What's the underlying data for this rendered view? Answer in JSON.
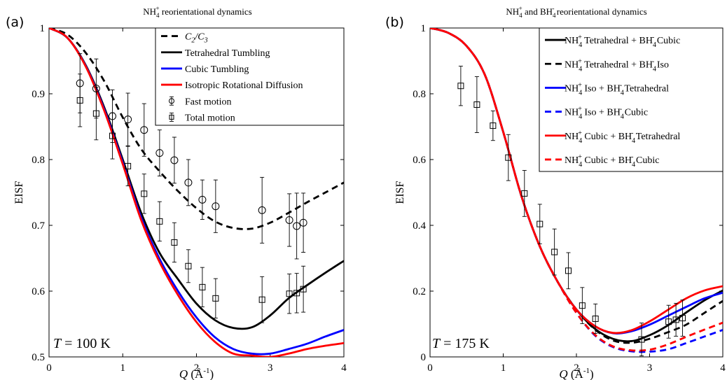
{
  "figure": {
    "panels": [
      {
        "letter": "(a)",
        "title_main": "NH",
        "title_sub": "4",
        "title_sup": "+",
        "title_rest": " reorientational dynamics",
        "temperature_var": "T",
        "temperature_rest": " = 100 K"
      },
      {
        "letter": "(b)",
        "title_main": "NH",
        "title_sub": "4",
        "title_sup": "+",
        "title_rest": " and BH",
        "title_sub2": "4",
        "title_sup2": "-",
        "title_rest2": " reorientational dynamics",
        "temperature_var": "T",
        "temperature_rest": " = 175 K"
      }
    ]
  },
  "chart_data": [
    {
      "type": "line",
      "panel": "(a)",
      "title": "NH4+ reorientational dynamics",
      "xlabel": "Q (Å-1)",
      "ylabel": "EISF",
      "xlim": [
        0,
        4
      ],
      "ylim": [
        0.5,
        1
      ],
      "xticks": [
        "0",
        "1",
        "2",
        "3",
        "4"
      ],
      "yticks": [
        "0.5",
        "0.6",
        "0.7",
        "0.8",
        "0.9",
        "1"
      ],
      "legend_position": "top-right",
      "series": [
        {
          "name": "C2/C3",
          "color": "#000000",
          "dash": true,
          "x": [
            0,
            0.25,
            0.5,
            0.75,
            1.0,
            1.25,
            1.5,
            1.75,
            2.0,
            2.25,
            2.5,
            2.75,
            3.0,
            3.25,
            3.5,
            3.75,
            4.0
          ],
          "y": [
            1.0,
            0.99,
            0.962,
            0.919,
            0.864,
            0.816,
            0.782,
            0.752,
            0.726,
            0.706,
            0.696,
            0.695,
            0.704,
            0.719,
            0.735,
            0.75,
            0.765
          ]
        },
        {
          "name": "Tetrahedral Tumbling",
          "color": "#000000",
          "dash": false,
          "x": [
            0,
            0.25,
            0.5,
            0.75,
            1.0,
            1.25,
            1.5,
            1.75,
            2.0,
            2.25,
            2.5,
            2.75,
            3.0,
            3.25,
            3.5,
            3.75,
            4.0
          ],
          "y": [
            1.0,
            0.985,
            0.943,
            0.879,
            0.8,
            0.719,
            0.658,
            0.618,
            0.581,
            0.556,
            0.544,
            0.545,
            0.563,
            0.589,
            0.609,
            0.628,
            0.646
          ]
        },
        {
          "name": "Cubic Tumbling",
          "color": "#0000ff",
          "dash": false,
          "x": [
            0,
            0.25,
            0.5,
            0.75,
            1.0,
            1.25,
            1.5,
            1.75,
            2.0,
            2.25,
            2.5,
            2.75,
            3.0,
            3.25,
            3.5,
            3.75,
            4.0
          ],
          "y": [
            1.0,
            0.985,
            0.942,
            0.876,
            0.796,
            0.712,
            0.649,
            0.6,
            0.56,
            0.53,
            0.512,
            0.505,
            0.505,
            0.512,
            0.52,
            0.531,
            0.541
          ]
        },
        {
          "name": "Isotropic Rotational Diffusion",
          "color": "#ff0000",
          "dash": false,
          "x": [
            0,
            0.25,
            0.5,
            0.75,
            1.0,
            1.25,
            1.5,
            1.75,
            2.0,
            2.25,
            2.5,
            2.75,
            3.0,
            3.25,
            3.5,
            3.75,
            4.0
          ],
          "y": [
            1.0,
            0.985,
            0.941,
            0.874,
            0.793,
            0.708,
            0.644,
            0.594,
            0.553,
            0.523,
            0.505,
            0.502,
            0.5,
            0.505,
            0.512,
            0.517,
            0.521
          ]
        }
      ],
      "points": [
        {
          "name": "Fast motion",
          "marker": "circle",
          "x": [
            0.42,
            0.64,
            0.86,
            1.07,
            1.29,
            1.5,
            1.7,
            1.89,
            2.08,
            2.26,
            2.89,
            3.26,
            3.36,
            3.45
          ],
          "y": [
            0.916,
            0.908,
            0.866,
            0.861,
            0.845,
            0.81,
            0.799,
            0.765,
            0.739,
            0.729,
            0.723,
            0.708,
            0.699,
            0.704
          ],
          "err": [
            0.045,
            0.045,
            0.04,
            0.04,
            0.04,
            0.035,
            0.035,
            0.035,
            0.03,
            0.04,
            0.05,
            0.04,
            0.05,
            0.045
          ]
        },
        {
          "name": "Total motion",
          "marker": "square",
          "x": [
            0.42,
            0.64,
            0.86,
            1.07,
            1.29,
            1.5,
            1.7,
            1.89,
            2.08,
            2.26,
            2.89,
            3.26,
            3.36,
            3.45
          ],
          "y": [
            0.89,
            0.87,
            0.836,
            0.79,
            0.748,
            0.706,
            0.674,
            0.638,
            0.606,
            0.589,
            0.587,
            0.596,
            0.597,
            0.603
          ],
          "err": [
            0.04,
            0.04,
            0.035,
            0.03,
            0.03,
            0.03,
            0.03,
            0.025,
            0.03,
            0.03,
            0.035,
            0.03,
            0.03,
            0.035
          ]
        }
      ],
      "annotation": "T = 100 K"
    },
    {
      "type": "line",
      "panel": "(b)",
      "title": "NH4+ and BH4- reorientational dynamics",
      "xlabel": "Q (Å-1)",
      "ylabel": "EISF",
      "xlim": [
        0,
        4
      ],
      "ylim": [
        0,
        1
      ],
      "xticks": [
        "0",
        "1",
        "2",
        "3",
        "4"
      ],
      "yticks": [
        "0",
        "0.2",
        "0.4",
        "0.6",
        "0.8",
        "1"
      ],
      "legend_position": "top-right",
      "series": [
        {
          "name": "NH4+ Tetrahedral + BH4- Cubic",
          "color": "#000000",
          "dash": false,
          "x": [
            0,
            0.25,
            0.5,
            0.75,
            1.0,
            1.25,
            1.5,
            1.75,
            2.0,
            2.25,
            2.5,
            2.75,
            3.0,
            3.25,
            3.5,
            3.75,
            4.0
          ],
          "y": [
            1.0,
            0.985,
            0.945,
            0.857,
            0.684,
            0.488,
            0.336,
            0.226,
            0.144,
            0.086,
            0.055,
            0.048,
            0.066,
            0.096,
            0.135,
            0.172,
            0.202
          ]
        },
        {
          "name": "NH4+ Tetrahedral + BH4- Iso",
          "color": "#000000",
          "dash": true,
          "x": [
            0,
            0.25,
            0.5,
            0.75,
            1.0,
            1.25,
            1.5,
            1.75,
            2.0,
            2.25,
            2.5,
            2.75,
            3.0,
            3.25,
            3.5,
            3.75,
            4.0
          ],
          "y": [
            1.0,
            0.985,
            0.945,
            0.857,
            0.684,
            0.488,
            0.336,
            0.226,
            0.144,
            0.084,
            0.05,
            0.043,
            0.055,
            0.075,
            0.098,
            0.134,
            0.17
          ]
        },
        {
          "name": "NH4+ Iso + BH4- Tetrahedral",
          "color": "#0000ff",
          "dash": false,
          "x": [
            0,
            0.25,
            0.5,
            0.75,
            1.0,
            1.25,
            1.5,
            1.75,
            2.0,
            2.25,
            2.5,
            2.75,
            3.0,
            3.25,
            3.5,
            3.75,
            4.0
          ],
          "y": [
            1.0,
            0.985,
            0.945,
            0.857,
            0.684,
            0.488,
            0.336,
            0.226,
            0.144,
            0.094,
            0.072,
            0.078,
            0.098,
            0.125,
            0.152,
            0.178,
            0.195
          ]
        },
        {
          "name": "NH4+ Iso + BH4- Cubic",
          "color": "#0000ff",
          "dash": true,
          "x": [
            0,
            0.25,
            0.5,
            0.75,
            1.0,
            1.25,
            1.5,
            1.75,
            2.0,
            2.25,
            2.5,
            2.75,
            3.0,
            3.25,
            3.5,
            3.75,
            4.0
          ],
          "y": [
            1.0,
            0.985,
            0.945,
            0.857,
            0.684,
            0.488,
            0.336,
            0.226,
            0.134,
            0.066,
            0.03,
            0.017,
            0.016,
            0.023,
            0.042,
            0.062,
            0.082
          ]
        },
        {
          "name": "NH4+ Cubic + BH4- Tetrahedral",
          "color": "#ff0000",
          "dash": false,
          "x": [
            0,
            0.25,
            0.5,
            0.75,
            1.0,
            1.25,
            1.5,
            1.75,
            2.0,
            2.25,
            2.5,
            2.75,
            3.0,
            3.25,
            3.5,
            3.75,
            4.0
          ],
          "y": [
            1.0,
            0.985,
            0.945,
            0.857,
            0.684,
            0.488,
            0.336,
            0.226,
            0.144,
            0.094,
            0.073,
            0.081,
            0.108,
            0.143,
            0.178,
            0.202,
            0.215
          ]
        },
        {
          "name": "NH4+ Cubic + BH4- Cubic",
          "color": "#ff0000",
          "dash": true,
          "x": [
            0,
            0.25,
            0.5,
            0.75,
            1.0,
            1.25,
            1.5,
            1.75,
            2.0,
            2.25,
            2.5,
            2.75,
            3.0,
            3.25,
            3.5,
            3.75,
            4.0
          ],
          "y": [
            1.0,
            0.985,
            0.945,
            0.857,
            0.684,
            0.488,
            0.336,
            0.226,
            0.134,
            0.068,
            0.032,
            0.02,
            0.022,
            0.038,
            0.061,
            0.083,
            0.104
          ]
        }
      ],
      "points": [
        {
          "name": "",
          "marker": "square",
          "x": [
            0.42,
            0.64,
            0.86,
            1.07,
            1.29,
            1.5,
            1.7,
            1.89,
            2.08,
            2.26,
            2.89,
            3.26,
            3.36,
            3.45
          ],
          "y": [
            0.824,
            0.767,
            0.703,
            0.606,
            0.497,
            0.404,
            0.319,
            0.262,
            0.156,
            0.116,
            0.053,
            0.107,
            0.113,
            0.118
          ],
          "err": [
            0.06,
            0.085,
            0.045,
            0.07,
            0.07,
            0.06,
            0.07,
            0.055,
            0.055,
            0.045,
            0.05,
            0.05,
            0.05,
            0.055
          ]
        }
      ],
      "annotation": "T = 175 K"
    }
  ]
}
